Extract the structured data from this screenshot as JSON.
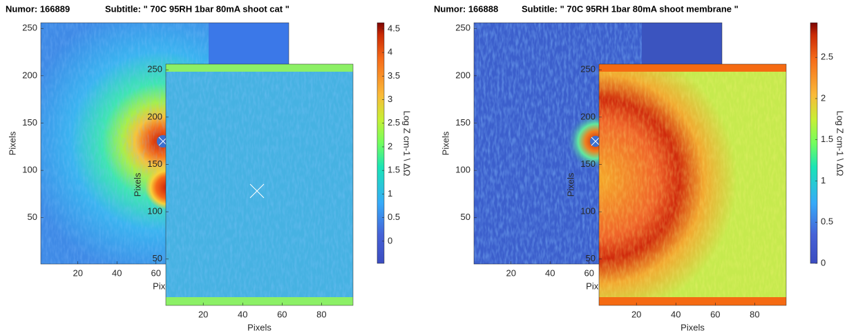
{
  "chart_data": [
    {
      "type": "heatmap",
      "title": "Numor: 166889",
      "subtitle": "Subtitle: \" 70C 95RH 1bar 80mA shoot cat \"",
      "colormap": "turbo",
      "back": {
        "xlim": [
          1,
          128
        ],
        "ylim": [
          1,
          256
        ],
        "xticks": [
          20,
          40,
          60
        ],
        "yticks": [
          50,
          100,
          150,
          200,
          250
        ],
        "xlabel": "Pixels",
        "ylabel": "Pixels"
      },
      "front": {
        "xlim": [
          1,
          96
        ],
        "ylim": [
          1,
          256
        ],
        "xticks": [
          20,
          40,
          60,
          80
        ],
        "yticks": [
          50,
          100,
          150,
          200,
          250
        ],
        "xlabel": "Pixels",
        "ylabel": "Pixels"
      },
      "colorbar": {
        "clim": [
          -0.47,
          4.63
        ],
        "cticks": [
          0,
          0.5,
          1,
          1.5,
          2,
          2.5,
          3,
          3.5,
          4,
          4.5
        ],
        "label": "Log Z  cm-1 \\ ΔΩ"
      }
    },
    {
      "type": "heatmap",
      "title": "Numor: 166888",
      "subtitle": "Subtitle: \" 70C 95RH 1bar 80mA shoot membrane \"",
      "colormap": "turbo",
      "back": {
        "xlim": [
          1,
          128
        ],
        "ylim": [
          1,
          256
        ],
        "xticks": [
          20,
          40,
          60
        ],
        "yticks": [
          50,
          100,
          150,
          200,
          250
        ],
        "xlabel": "Pixels",
        "ylabel": "Pixels"
      },
      "front": {
        "xlim": [
          1,
          96
        ],
        "ylim": [
          1,
          256
        ],
        "xticks": [
          20,
          40,
          60,
          80
        ],
        "yticks": [
          50,
          100,
          150,
          200,
          250
        ],
        "xlabel": "Pixels",
        "ylabel": "Pixels"
      },
      "colorbar": {
        "clim": [
          0,
          2.92
        ],
        "cticks": [
          0,
          0.5,
          1,
          1.5,
          2,
          2.5
        ],
        "label": "Log Z  cm-1 \\ ΔΩ"
      }
    }
  ]
}
